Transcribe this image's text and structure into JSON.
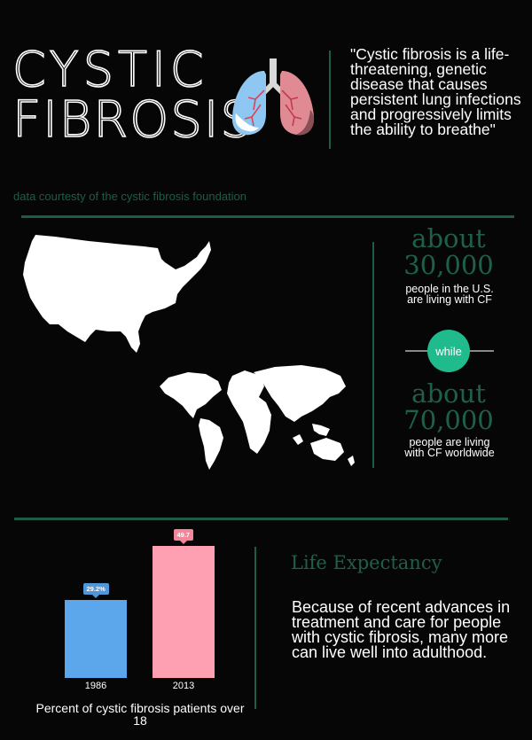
{
  "header": {
    "title_line1": "CYSTIC",
    "title_line2": "FIBROSIS",
    "quote": "\"Cystic fibrosis is a life-threatening, genetic disease that causes persistent lung infections and progressively limits the ability to breathe\""
  },
  "credit": "data courtesty of the cystic fibrosis foundation",
  "stats": {
    "us": {
      "prefix": "about",
      "number": "30,000",
      "description": "people in the U.S. are living with CF"
    },
    "connector": "while",
    "world": {
      "prefix": "about",
      "number": "70,000",
      "description": "people are living with CF worldwide"
    }
  },
  "life_expectancy": {
    "title": "Life Expectancy",
    "body": "Because of recent advances in treatment and care for people with cystic fibrosis, many more can live well into adulthood."
  },
  "chart_data": {
    "type": "bar",
    "categories": [
      "1986",
      "2013"
    ],
    "values": [
      29.2,
      49.7
    ],
    "value_labels": [
      "29.2%",
      "49.7"
    ],
    "xlabel": "Percent of cystic fibrosis patients over 18",
    "colors": [
      "#5ca7ec",
      "#ff9fb2"
    ],
    "ylim": [
      0,
      49.7
    ]
  },
  "colors": {
    "background": "#060606",
    "accent_green": "#1e6048",
    "badge_green": "#1fbb8c",
    "blue": "#5ca7ec",
    "pink": "#ff9fb2"
  },
  "icons": {
    "lungs": "lungs-icon",
    "us_map": "us-map-icon",
    "world_map": "world-map-icon"
  }
}
